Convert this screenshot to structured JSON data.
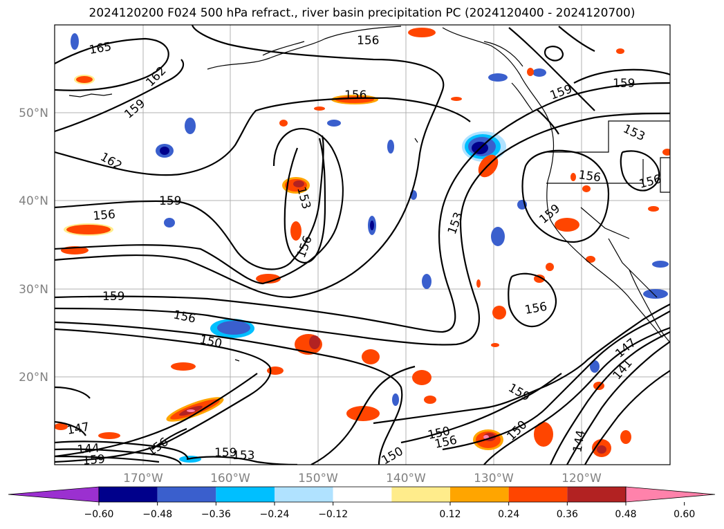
{
  "title": "2024120200 F024 500 hPa refract., river basin precipitation PC (2024120400 - 2024120700)",
  "latitude_labels": [
    "50°N",
    "40°N",
    "30°N",
    "20°N"
  ],
  "longitude_labels": [
    "170°W",
    "160°W",
    "150°W",
    "140°W",
    "130°W",
    "120°W"
  ],
  "colorbar": {
    "ticks": [
      "−0.60",
      "−0.48",
      "−0.36",
      "−0.24",
      "−0.12",
      "0.12",
      "0.24",
      "0.36",
      "0.48",
      "0.60"
    ],
    "colors": [
      "#9b30d0",
      "#00008b",
      "#3a5fcd",
      "#00bfff",
      "#b0e2ff",
      "#ffffff",
      "#ffec8b",
      "#ffa500",
      "#ff4500",
      "#b22222",
      "#ff82ab"
    ]
  },
  "contour_labels": [
    {
      "text": "165"
    },
    {
      "text": "162"
    },
    {
      "text": "159"
    },
    {
      "text": "162"
    },
    {
      "text": "159"
    },
    {
      "text": "156"
    },
    {
      "text": "156"
    },
    {
      "text": "156"
    },
    {
      "text": "153"
    },
    {
      "text": "156"
    },
    {
      "text": "159"
    },
    {
      "text": "156"
    },
    {
      "text": "150"
    },
    {
      "text": "153"
    },
    {
      "text": "159"
    },
    {
      "text": "159"
    },
    {
      "text": "153"
    },
    {
      "text": "156"
    },
    {
      "text": "156"
    },
    {
      "text": "159"
    },
    {
      "text": "156"
    },
    {
      "text": "147"
    },
    {
      "text": "141"
    },
    {
      "text": "159"
    },
    {
      "text": "150"
    },
    {
      "text": "150"
    },
    {
      "text": "156"
    },
    {
      "text": "144"
    },
    {
      "text": "147"
    },
    {
      "text": "144"
    },
    {
      "text": "156"
    },
    {
      "text": "159"
    },
    {
      "text": "159"
    },
    {
      "text": "153"
    },
    {
      "text": "150"
    }
  ]
}
